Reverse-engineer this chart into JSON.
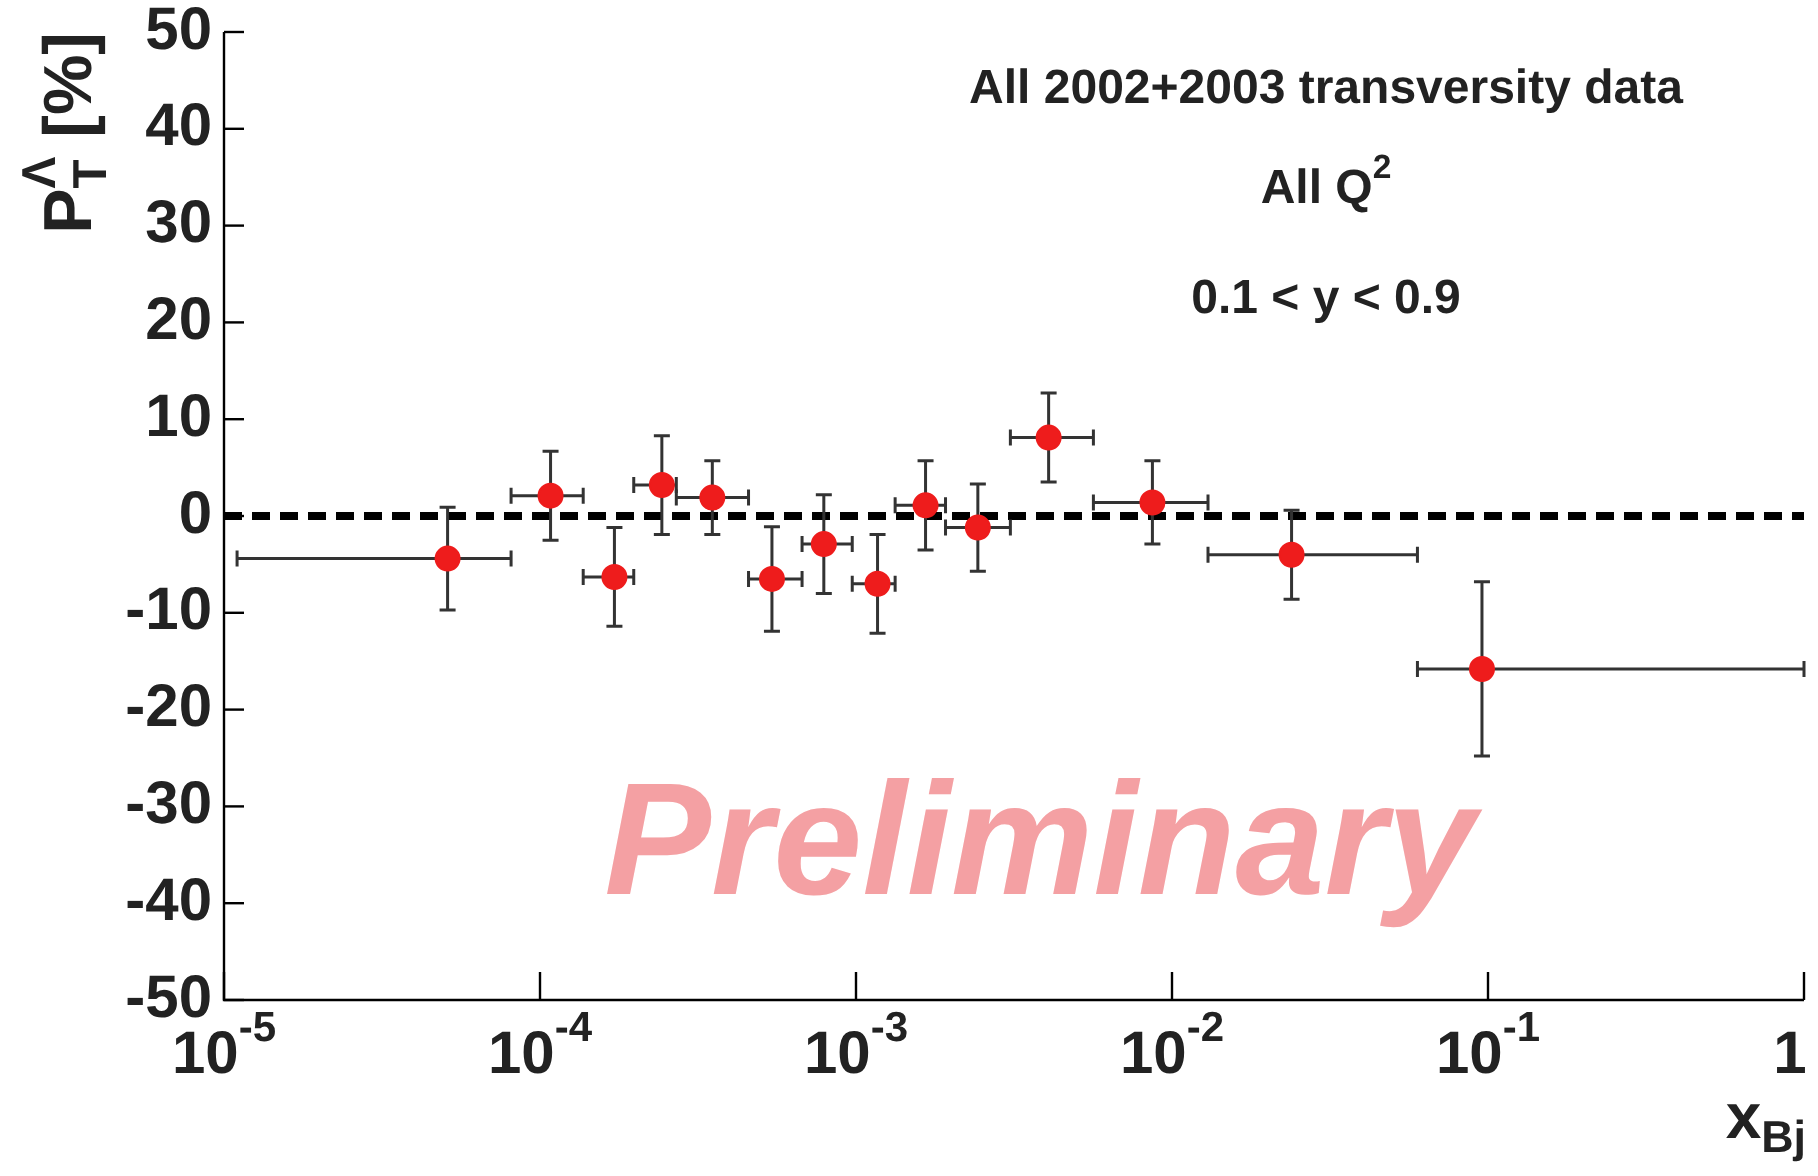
{
  "chart_data": {
    "type": "scatter",
    "xlabel": "x$_{Bj}$",
    "ylabel": "P$^{Λ}$$_{T}$ [%]",
    "annotations": [
      "All 2002+2003 transversity data",
      "All Q$^{2}$",
      "0.1 < y < 0.9",
      "Preliminary"
    ],
    "log": "x",
    "xlim": [
      1e-05,
      1
    ],
    "ylim": [
      -50,
      50
    ],
    "xticks": [
      {
        "value": 1e-05,
        "label": "10$^{-5}$"
      },
      {
        "value": 0.0001,
        "label": "10$^{-4}$"
      },
      {
        "value": 0.001,
        "label": "10$^{-3}$"
      },
      {
        "value": 0.01,
        "label": "10$^{-2}$"
      },
      {
        "value": 0.1,
        "label": "10$^{-1}$"
      },
      1
    ],
    "yticks": [
      -50,
      -40,
      -30,
      -20,
      -10,
      0,
      10,
      20,
      30,
      40,
      50
    ],
    "grid": false,
    "legend": false,
    "marker": "circle",
    "ref_lines": [
      {
        "axis": "y",
        "value": 0,
        "color": "#000000",
        "line_style": "dashed"
      }
    ],
    "series": [
      {
        "color": "#ee1c1c",
        "x": [
          5.1e-05,
          0.000108,
          0.000172,
          0.000243,
          0.000351,
          0.000542,
          0.000791,
          0.00117,
          0.00166,
          0.00243,
          0.00407,
          0.00867,
          0.0239,
          0.0957
        ],
        "values": [
          -4.4,
          2.1,
          -6.3,
          3.2,
          1.9,
          -6.5,
          -2.9,
          -7.0,
          1.1,
          -1.2,
          8.1,
          1.4,
          -4.0,
          -15.8
        ],
        "errors": [
          5.3,
          4.6,
          5.1,
          5.1,
          3.8,
          5.4,
          5.1,
          5.1,
          4.6,
          4.5,
          4.6,
          4.3,
          4.6,
          9.0
        ],
        "xerrors": [
          [
            1.1e-05,
            8.1e-05
          ],
          [
            8.1e-05,
            0.000137
          ],
          [
            0.000137,
            0.000198
          ],
          [
            0.000198,
            0.00027
          ],
          [
            0.00027,
            0.000457
          ],
          [
            0.000457,
            0.000675
          ],
          [
            0.000675,
            0.000973
          ],
          [
            0.000973,
            0.00133
          ],
          [
            0.00133,
            0.00192
          ],
          [
            0.00192,
            0.00308
          ],
          [
            0.00308,
            0.00564
          ],
          [
            0.00564,
            0.013
          ],
          [
            0.013,
            0.0598
          ],
          [
            0.0598,
            1.0
          ]
        ]
      }
    ]
  }
}
